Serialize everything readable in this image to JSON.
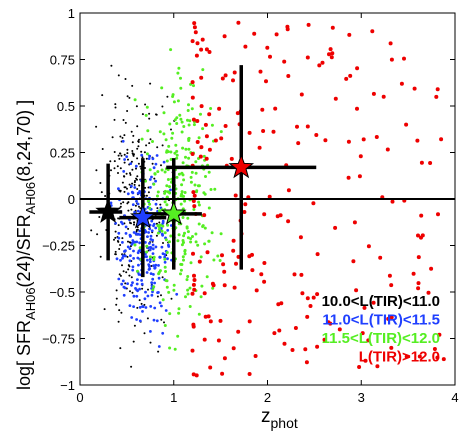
{
  "chart_data": {
    "type": "scatter",
    "xlabel": {
      "main": "z",
      "sub": "phot"
    },
    "ylabel": {
      "prefix": "log[ SFR",
      "sub1": "AH06",
      "mid": "(24)/SFR",
      "sub2": "AH06",
      "suffix": "(8,24,70) ]"
    },
    "xlim": [
      0,
      4
    ],
    "ylim": [
      -1,
      1
    ],
    "xticks": [
      0,
      1,
      2,
      3,
      4
    ],
    "xtick_labels": [
      "0",
      "1",
      "2",
      "3",
      "4"
    ],
    "yticks": [
      -1,
      -0.75,
      -0.5,
      -0.25,
      0,
      0.25,
      0.5,
      0.75,
      1
    ],
    "ytick_labels": [
      "−1",
      "−0.75",
      "−0.5",
      "−0.25",
      "0",
      "0.25",
      "0.5",
      "0.75",
      "1"
    ],
    "reference_line_y": 0,
    "grid": false,
    "legend_position": "bottom-right",
    "series": [
      {
        "name": "10.0<L(TIR)<11.0",
        "color": "#000000",
        "marker_size": 1.0,
        "cluster": {
          "x_range": [
            0.05,
            1.1
          ],
          "y_range": [
            -0.95,
            0.9
          ],
          "count": 280
        },
        "median": {
          "x": 0.3,
          "y": -0.07,
          "xerr": [
            0.2,
            0.15
          ],
          "yerr": [
            0.26,
            0.26
          ],
          "marker": "star"
        }
      },
      {
        "name": "11.0<L(TIR)<11.5",
        "color": "#1f3fff",
        "marker_size": 1.4,
        "cluster": {
          "x_range": [
            0.25,
            1.1
          ],
          "y_range": [
            -0.9,
            0.4
          ],
          "count": 260
        },
        "median": {
          "x": 0.67,
          "y": -0.1,
          "xerr": [
            0.25,
            0.25
          ],
          "yerr": [
            0.32,
            0.32
          ],
          "marker": "star"
        }
      },
      {
        "name": "11.5<L(TIR)<12.0",
        "color": "#55ee22",
        "marker_size": 1.5,
        "cluster": {
          "x_range": [
            0.5,
            1.6
          ],
          "y_range": [
            -0.95,
            0.95
          ],
          "count": 300
        },
        "median": {
          "x": 1.0,
          "y": -0.08,
          "xerr": [
            0.3,
            0.3
          ],
          "yerr": [
            0.3,
            0.3
          ],
          "marker": "star"
        }
      },
      {
        "name": "L(TIR)>12.0",
        "color": "#ee0000",
        "marker_size": 2.0,
        "cluster": {
          "x_range": [
            1.2,
            3.9
          ],
          "y_range": [
            -0.95,
            0.95
          ],
          "count": 230
        },
        "median": {
          "x": 1.72,
          "y": 0.17,
          "xerr": [
            0.8,
            0.8
          ],
          "yerr": [
            0.55,
            0.55
          ],
          "marker": "star"
        }
      }
    ],
    "legend": [
      {
        "label": "10.0<L(TIR)<11.0",
        "color": "#000000"
      },
      {
        "label": "11.0<L(TIR)<11.5",
        "color": "#1f3fff"
      },
      {
        "label": "11.5<L(TIR)<12.0",
        "color": "#55ee22"
      },
      {
        "label": "L(TIR)>12.0",
        "color": "#ee0000"
      }
    ]
  }
}
